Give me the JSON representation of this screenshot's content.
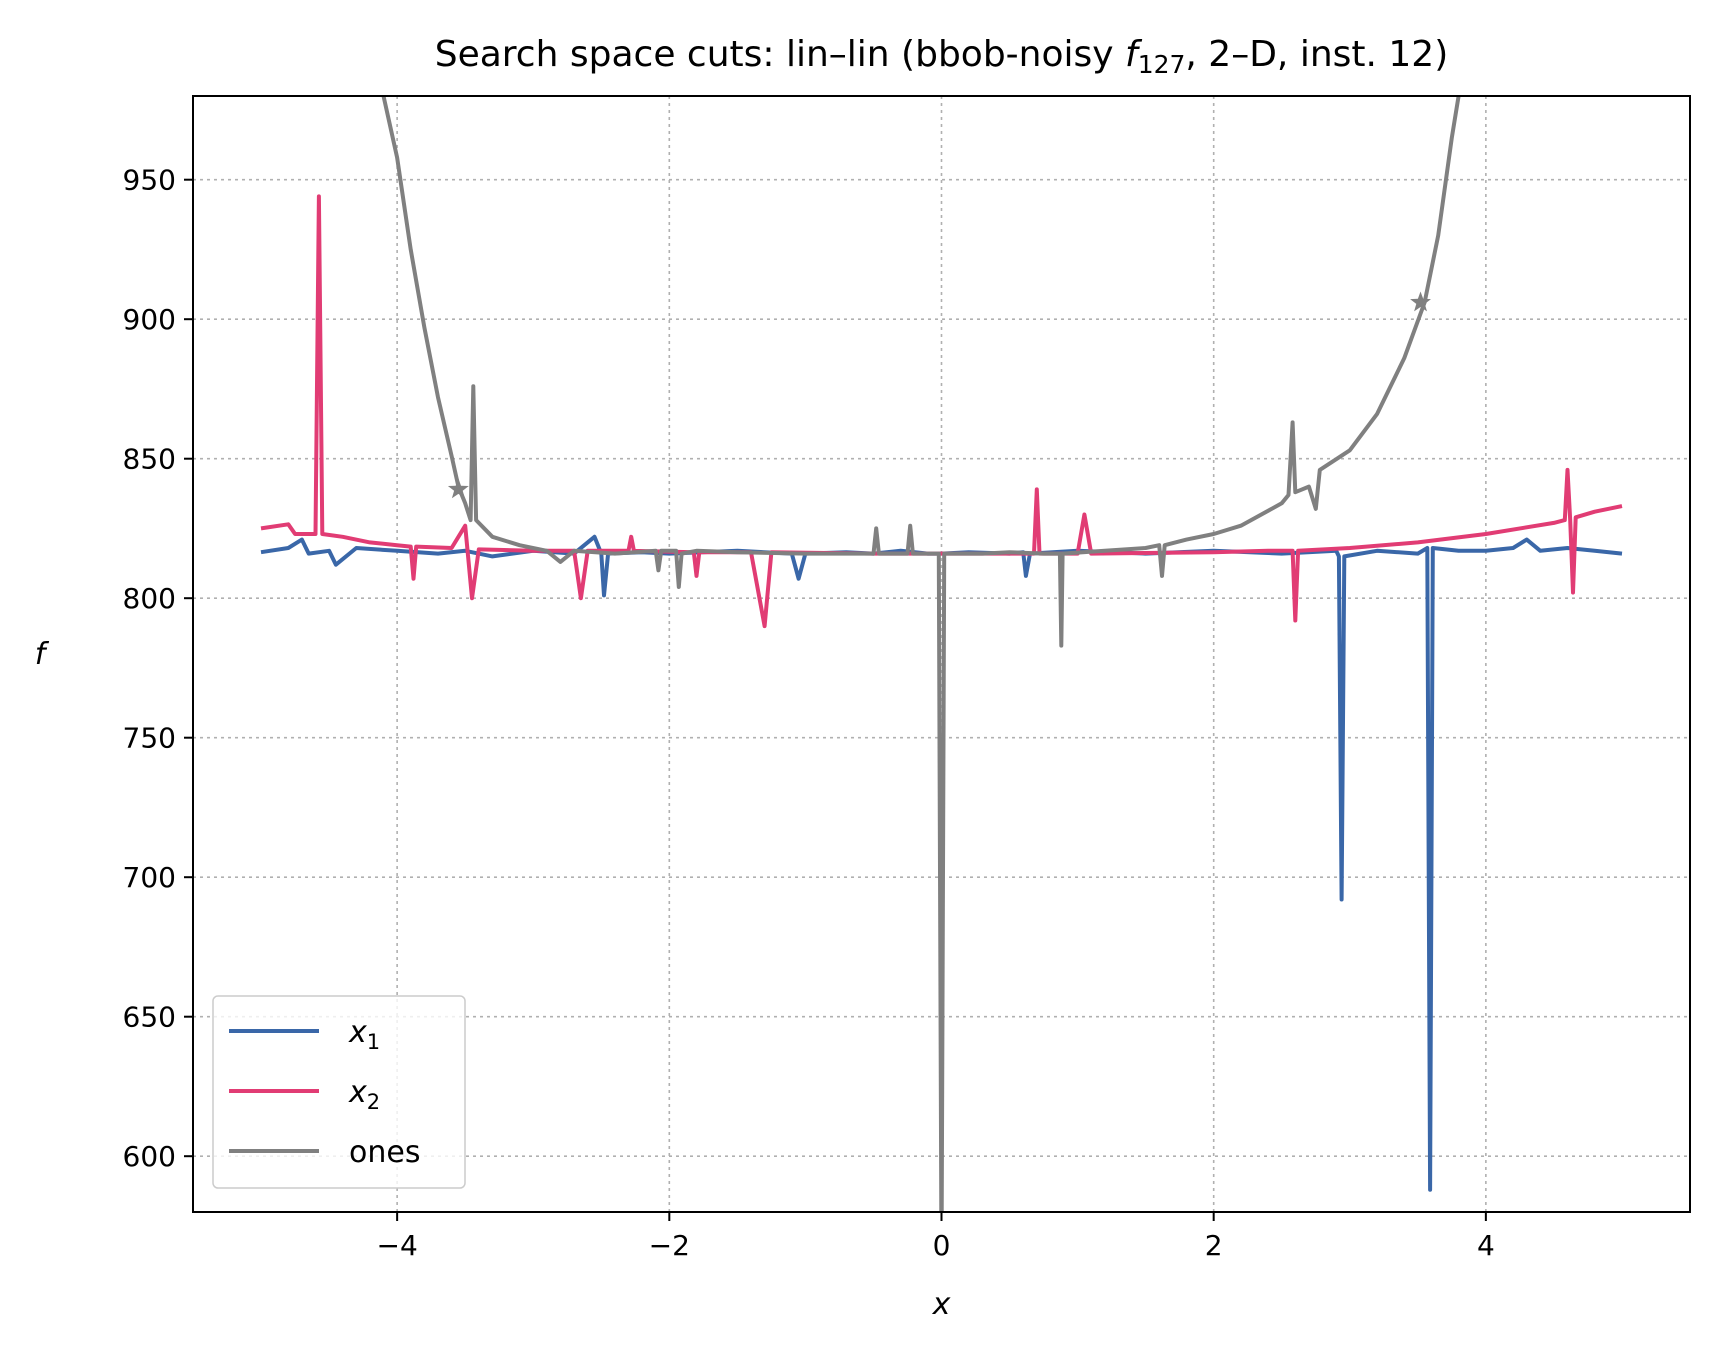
{
  "chart_data": {
    "type": "line",
    "title": {
      "prefix": "Search space cuts: lin–lin (bbob-noisy ",
      "func": "f",
      "func_sub": "127",
      "suffix": ", 2–D, inst. 12)"
    },
    "xlabel": "x",
    "ylabel": "f",
    "xlim": [
      -5.5,
      5.5
    ],
    "ylim": [
      580,
      980
    ],
    "xticks": [
      -4,
      -2,
      0,
      2,
      4
    ],
    "xtick_labels": [
      "−4",
      "−2",
      "0",
      "2",
      "4"
    ],
    "yticks": [
      600,
      650,
      700,
      750,
      800,
      850,
      900,
      950
    ],
    "ytick_labels": [
      "600",
      "650",
      "700",
      "750",
      "800",
      "850",
      "900",
      "950"
    ],
    "grid": true,
    "legend_position": "lower-left",
    "series": [
      {
        "name": "x",
        "name_sub": "1",
        "color": "#3a67a8",
        "points": [
          [
            -5.0,
            816.5
          ],
          [
            -4.8,
            818.0
          ],
          [
            -4.7,
            821.0
          ],
          [
            -4.65,
            816.0
          ],
          [
            -4.5,
            817.0
          ],
          [
            -4.45,
            812.0
          ],
          [
            -4.3,
            818.0
          ],
          [
            -4.0,
            817.0
          ],
          [
            -3.7,
            816.0
          ],
          [
            -3.5,
            817.0
          ],
          [
            -3.3,
            815.0
          ],
          [
            -3.0,
            817.0
          ],
          [
            -2.7,
            816.0
          ],
          [
            -2.55,
            822.0
          ],
          [
            -2.5,
            816.0
          ],
          [
            -2.48,
            801.0
          ],
          [
            -2.45,
            816.0
          ],
          [
            -2.2,
            816.5
          ],
          [
            -2.0,
            816.0
          ],
          [
            -1.5,
            817.0
          ],
          [
            -1.1,
            816.0
          ],
          [
            -1.05,
            807.0
          ],
          [
            -1.0,
            816.0
          ],
          [
            -0.7,
            816.5
          ],
          [
            -0.5,
            816.0
          ],
          [
            -0.3,
            817.0
          ],
          [
            -0.1,
            816.0
          ],
          [
            0.0,
            816.0
          ],
          [
            0.2,
            816.5
          ],
          [
            0.5,
            816.0
          ],
          [
            0.6,
            816.5
          ],
          [
            0.62,
            808.0
          ],
          [
            0.65,
            816.0
          ],
          [
            1.0,
            817.0
          ],
          [
            1.5,
            816.0
          ],
          [
            2.0,
            817.0
          ],
          [
            2.5,
            816.0
          ],
          [
            2.9,
            817.0
          ],
          [
            2.92,
            815.0
          ],
          [
            2.94,
            692.0
          ],
          [
            2.96,
            815.0
          ],
          [
            3.2,
            817.0
          ],
          [
            3.5,
            816.0
          ],
          [
            3.57,
            818.0
          ],
          [
            3.59,
            588.0
          ],
          [
            3.61,
            818.0
          ],
          [
            3.8,
            817.0
          ],
          [
            4.0,
            817.0
          ],
          [
            4.2,
            818.0
          ],
          [
            4.3,
            821.0
          ],
          [
            4.4,
            817.0
          ],
          [
            4.6,
            818.0
          ],
          [
            4.8,
            817.0
          ],
          [
            5.0,
            816.0
          ]
        ]
      },
      {
        "name": "x",
        "name_sub": "2",
        "color": "#e13c74",
        "points": [
          [
            -5.0,
            825.0
          ],
          [
            -4.8,
            826.5
          ],
          [
            -4.75,
            823.0
          ],
          [
            -4.6,
            823.0
          ],
          [
            -4.575,
            944.0
          ],
          [
            -4.55,
            823.0
          ],
          [
            -4.4,
            822.0
          ],
          [
            -4.2,
            820.0
          ],
          [
            -4.0,
            819.0
          ],
          [
            -3.9,
            818.5
          ],
          [
            -3.88,
            807.0
          ],
          [
            -3.86,
            818.5
          ],
          [
            -3.6,
            818.0
          ],
          [
            -3.5,
            826.0
          ],
          [
            -3.45,
            800.0
          ],
          [
            -3.4,
            817.5
          ],
          [
            -3.0,
            817.0
          ],
          [
            -2.7,
            817.0
          ],
          [
            -2.65,
            800.0
          ],
          [
            -2.6,
            817.0
          ],
          [
            -2.3,
            817.0
          ],
          [
            -2.28,
            822.0
          ],
          [
            -2.26,
            817.0
          ],
          [
            -1.82,
            816.5
          ],
          [
            -1.8,
            808.0
          ],
          [
            -1.78,
            816.5
          ],
          [
            -1.4,
            816.5
          ],
          [
            -1.3,
            790.0
          ],
          [
            -1.25,
            816.5
          ],
          [
            -0.5,
            816.0
          ],
          [
            0.0,
            816.0
          ],
          [
            0.5,
            816.0
          ],
          [
            0.68,
            816.0
          ],
          [
            0.7,
            839.0
          ],
          [
            0.72,
            816.0
          ],
          [
            1.0,
            816.0
          ],
          [
            1.05,
            830.0
          ],
          [
            1.1,
            816.0
          ],
          [
            2.0,
            816.5
          ],
          [
            2.4,
            817.0
          ],
          [
            2.58,
            817.0
          ],
          [
            2.6,
            792.0
          ],
          [
            2.62,
            817.0
          ],
          [
            3.0,
            818.0
          ],
          [
            3.5,
            820.0
          ],
          [
            4.0,
            823.0
          ],
          [
            4.5,
            827.0
          ],
          [
            4.58,
            828.0
          ],
          [
            4.6,
            846.0
          ],
          [
            4.62,
            828.0
          ],
          [
            4.64,
            802.0
          ],
          [
            4.66,
            829.0
          ],
          [
            4.8,
            831.0
          ],
          [
            5.0,
            833.0
          ]
        ]
      },
      {
        "name": "ones",
        "name_sub": "",
        "color": "#808080",
        "points": [
          [
            -4.1,
            980.0
          ],
          [
            -4.0,
            958.0
          ],
          [
            -3.9,
            925.0
          ],
          [
            -3.8,
            897.0
          ],
          [
            -3.7,
            872.0
          ],
          [
            -3.6,
            851.0
          ],
          [
            -3.55,
            840.0
          ],
          [
            -3.5,
            834.0
          ],
          [
            -3.46,
            828.0
          ],
          [
            -3.44,
            876.0
          ],
          [
            -3.42,
            828.0
          ],
          [
            -3.3,
            822.0
          ],
          [
            -3.1,
            819.0
          ],
          [
            -2.9,
            817.0
          ],
          [
            -2.8,
            813.0
          ],
          [
            -2.7,
            817.0
          ],
          [
            -2.4,
            816.0
          ],
          [
            -2.1,
            817.0
          ],
          [
            -2.08,
            810.0
          ],
          [
            -2.06,
            817.0
          ],
          [
            -1.95,
            817.0
          ],
          [
            -1.93,
            804.0
          ],
          [
            -1.91,
            816.0
          ],
          [
            -1.8,
            817.0
          ],
          [
            -1.5,
            816.5
          ],
          [
            -1.0,
            816.0
          ],
          [
            -0.5,
            816.0
          ],
          [
            -0.48,
            825.0
          ],
          [
            -0.46,
            816.0
          ],
          [
            -0.25,
            816.0
          ],
          [
            -0.23,
            826.0
          ],
          [
            -0.21,
            816.0
          ],
          [
            -0.02,
            816.0
          ],
          [
            0.0,
            560.0
          ],
          [
            0.02,
            816.0
          ],
          [
            0.3,
            816.0
          ],
          [
            0.5,
            816.5
          ],
          [
            0.75,
            816.0
          ],
          [
            0.87,
            816.0
          ],
          [
            0.88,
            783.0
          ],
          [
            0.89,
            816.0
          ],
          [
            1.2,
            817.0
          ],
          [
            1.5,
            818.0
          ],
          [
            1.6,
            819.0
          ],
          [
            1.62,
            808.0
          ],
          [
            1.64,
            819.0
          ],
          [
            1.8,
            821.0
          ],
          [
            2.0,
            823.0
          ],
          [
            2.2,
            826.0
          ],
          [
            2.5,
            834.0
          ],
          [
            2.55,
            837.0
          ],
          [
            2.58,
            863.0
          ],
          [
            2.6,
            838.0
          ],
          [
            2.7,
            840.0
          ],
          [
            2.75,
            832.0
          ],
          [
            2.78,
            846.0
          ],
          [
            3.0,
            853.0
          ],
          [
            3.2,
            866.0
          ],
          [
            3.4,
            886.0
          ],
          [
            3.55,
            906.0
          ],
          [
            3.65,
            930.0
          ],
          [
            3.75,
            965.0
          ],
          [
            3.8,
            980.0
          ]
        ]
      }
    ],
    "markers": [
      {
        "series": "ones",
        "x": -3.55,
        "y": 839.0
      },
      {
        "series": "ones",
        "x": 3.52,
        "y": 906.0
      }
    ]
  }
}
